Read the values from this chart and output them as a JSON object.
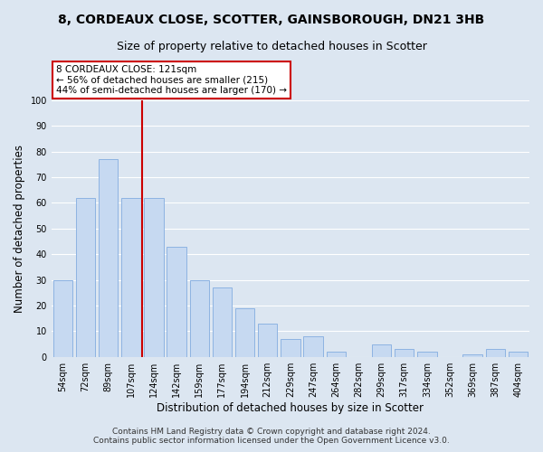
{
  "title": "8, CORDEAUX CLOSE, SCOTTER, GAINSBOROUGH, DN21 3HB",
  "subtitle": "Size of property relative to detached houses in Scotter",
  "xlabel": "Distribution of detached houses by size in Scotter",
  "ylabel": "Number of detached properties",
  "bar_labels": [
    "54sqm",
    "72sqm",
    "89sqm",
    "107sqm",
    "124sqm",
    "142sqm",
    "159sqm",
    "177sqm",
    "194sqm",
    "212sqm",
    "229sqm",
    "247sqm",
    "264sqm",
    "282sqm",
    "299sqm",
    "317sqm",
    "334sqm",
    "352sqm",
    "369sqm",
    "387sqm",
    "404sqm"
  ],
  "bar_values": [
    30,
    62,
    77,
    62,
    62,
    43,
    30,
    27,
    19,
    13,
    7,
    8,
    2,
    0,
    5,
    3,
    2,
    0,
    1,
    3,
    2
  ],
  "bar_color": "#c6d9f1",
  "bar_edge_color": "#8db3e2",
  "reference_line_color": "#cc0000",
  "annotation_title": "8 CORDEAUX CLOSE: 121sqm",
  "annotation_line1": "← 56% of detached houses are smaller (215)",
  "annotation_line2": "44% of semi-detached houses are larger (170) →",
  "annotation_box_color": "#ffffff",
  "annotation_box_edge_color": "#cc0000",
  "ylim": [
    0,
    100
  ],
  "yticks": [
    0,
    10,
    20,
    30,
    40,
    50,
    60,
    70,
    80,
    90,
    100
  ],
  "footer1": "Contains HM Land Registry data © Crown copyright and database right 2024.",
  "footer2": "Contains public sector information licensed under the Open Government Licence v3.0.",
  "bg_color": "#dce6f1",
  "plot_bg_color": "#dce6f1",
  "grid_color": "#ffffff",
  "title_fontsize": 10,
  "subtitle_fontsize": 9,
  "axis_label_fontsize": 8.5,
  "tick_fontsize": 7,
  "footer_fontsize": 6.5,
  "annot_fontsize": 7.5
}
